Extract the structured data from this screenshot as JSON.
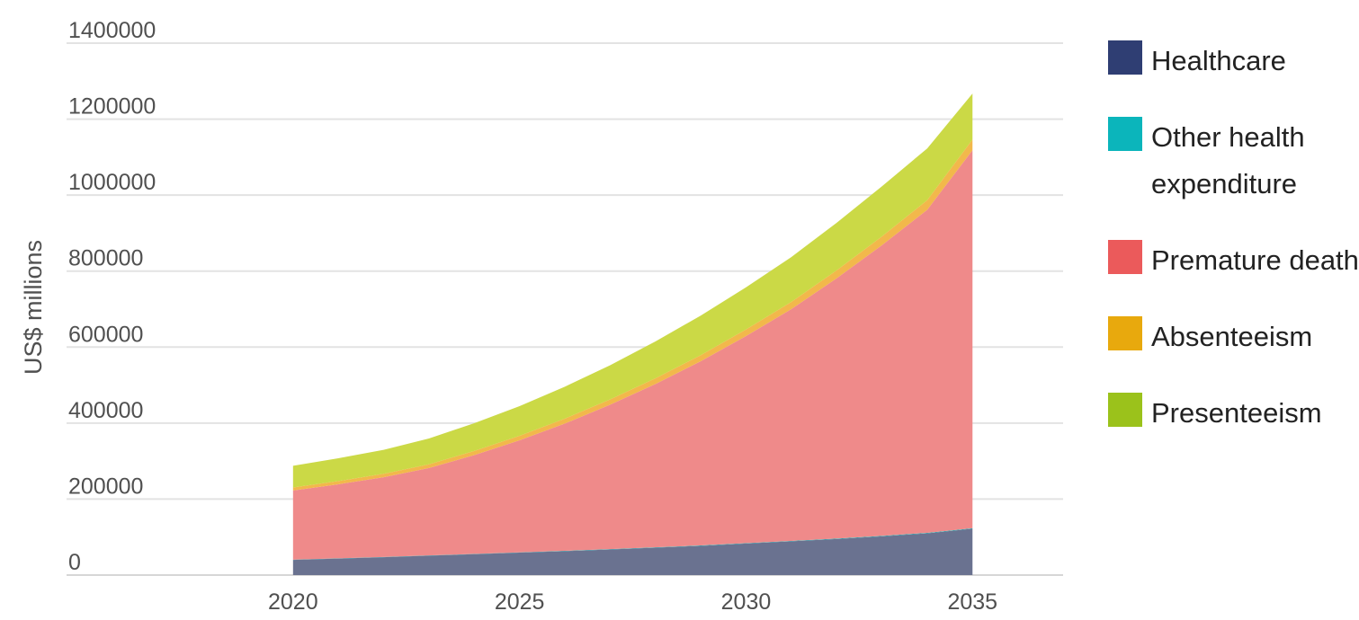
{
  "chart_data": {
    "type": "area",
    "stacked": true,
    "ylabel": "US$ millions",
    "ylim": [
      0,
      1400000
    ],
    "yticks": [
      0,
      200000,
      400000,
      600000,
      800000,
      1000000,
      1200000,
      1400000
    ],
    "xlim": [
      2015,
      2037
    ],
    "xticks": [
      2020,
      2025,
      2030,
      2035
    ],
    "x": [
      2020,
      2021,
      2022,
      2023,
      2024,
      2025,
      2026,
      2027,
      2028,
      2029,
      2030,
      2031,
      2032,
      2033,
      2034,
      2035
    ],
    "series": [
      {
        "name": "Healthcare",
        "color": "#6a7290",
        "values": [
          40000,
          43500,
          47000,
          51000,
          55000,
          59000,
          63000,
          67500,
          72000,
          77000,
          83000,
          89000,
          95000,
          102000,
          110000,
          122000
        ]
      },
      {
        "name": "Other health expenditure",
        "color": "#14b8bb",
        "values": [
          500,
          500,
          600,
          600,
          700,
          700,
          800,
          800,
          900,
          900,
          1000,
          1000,
          1100,
          1200,
          1300,
          1400
        ]
      },
      {
        "name": "Premature death",
        "color": "#ef8a8a",
        "values": [
          182000,
          195000,
          210000,
          230000,
          260000,
          295000,
          335000,
          380000,
          430000,
          485000,
          545000,
          610000,
          685000,
          765000,
          850000,
          995000
        ]
      },
      {
        "name": "Absenteeism",
        "color": "#f2b84b",
        "values": [
          8000,
          8500,
          9000,
          10000,
          11000,
          12000,
          13000,
          14000,
          15000,
          16000,
          17500,
          19000,
          21000,
          23000,
          25500,
          28000
        ]
      },
      {
        "name": "Presenteeism",
        "color": "#cbd946",
        "values": [
          57000,
          60000,
          63000,
          68000,
          73000,
          78000,
          84000,
          90000,
          97000,
          104000,
          111000,
          118000,
          125000,
          132000,
          136000,
          121000
        ]
      }
    ],
    "legend": [
      {
        "label": "Healthcare",
        "color": "#2f3e73"
      },
      {
        "label": "Other health expenditure",
        "color": "#0bb5bb"
      },
      {
        "label": "Premature death",
        "color": "#eb5a5b"
      },
      {
        "label": "Absenteeism",
        "color": "#e8a90d"
      },
      {
        "label": "Presenteeism",
        "color": "#9bc21b"
      }
    ],
    "legend_position": "right",
    "grid": true
  }
}
